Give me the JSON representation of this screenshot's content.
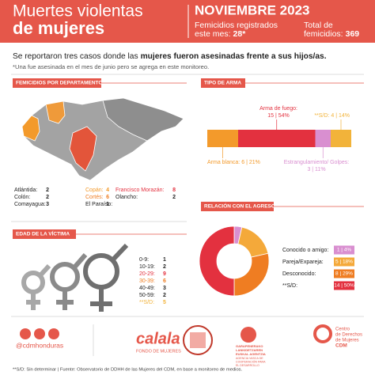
{
  "header": {
    "title_line1": "Muertes violentas",
    "title_line2": "de mujeres",
    "month": "NOVIEMBRE 2023",
    "monthly_label_line1": "Femicidios registrados",
    "monthly_label_line2": "este mes:",
    "monthly_value": "28*",
    "total_label_line1": "Total de",
    "total_label_line2": "femicidios:",
    "total_value": 369
  },
  "intro": {
    "text_start": "Se reportaron tres casos donde las",
    "text_bold": "mujeres fueron asesinadas frente a sus hijos/as.",
    "note": "*Una fue asesinada en el mes de junio pero se agrega en este monitoreo."
  },
  "chart_data": [
    {
      "type": "table",
      "title": "FEMICIDIOS POR DEPARTAMENTO",
      "categories": [
        "Atlántida:",
        "Colón:",
        "Comayagua:",
        "Copán:",
        "Cortés:",
        "El Paraíso:",
        "Francisco Morazán:",
        "Olancho:"
      ],
      "values": [
        2,
        2,
        3,
        4,
        6,
        1,
        8,
        2
      ],
      "colors": [
        "#222222",
        "#222222",
        "#222222",
        "#f39a2b",
        "#ef7d22",
        "#222222",
        "#e3313f",
        "#222222"
      ]
    },
    {
      "type": "stacked-bar",
      "title": "TIPO DE ARMA",
      "xlim": [
        0,
        28
      ],
      "series": [
        {
          "name": "Arma blanca:",
          "color": "#f39a2b",
          "values": [
            6
          ],
          "value_labels": [
            "6 | 21%"
          ]
        },
        {
          "name": "Arma de fuego:",
          "color": "#e3313f",
          "values": [
            15
          ],
          "value_labels": [
            "15 | 54%"
          ]
        },
        {
          "name": "Estrangulamiento/ Golpes:",
          "color": "#d98fd0",
          "values": [
            3
          ],
          "value_labels": [
            "3 | 11%"
          ]
        },
        {
          "name": "**S/D:",
          "color": "#f2b33a",
          "values": [
            4
          ],
          "value_labels": [
            "4 | 14%"
          ]
        }
      ]
    },
    {
      "type": "list",
      "title": "EDAD DE LA VÍCTIMA",
      "categories": [
        "0-9:",
        "10-19:",
        "20-29:",
        "30-39:",
        "40-49:",
        "50-59:",
        "**S/D:"
      ],
      "values": [
        1,
        2,
        9,
        6,
        3,
        2,
        5
      ],
      "colors": [
        "#222222",
        "#222222",
        "#e3313f",
        "#ef7d22",
        "#222222",
        "#222222",
        "#f2b33a"
      ]
    },
    {
      "type": "donut",
      "title": "RELACIÓN CON EL AGRESOR",
      "categories": [
        "Conocido o amigo:",
        "Pareja/Expareja:",
        "Desconocido:",
        "**S/D:"
      ],
      "values": [
        1,
        5,
        8,
        14
      ],
      "value_labels": [
        "1 | 4%",
        "5 | 18%",
        "8 | 29%",
        "14 | 50%"
      ],
      "colors": [
        "#d98fd0",
        "#f4a93a",
        "#ef7d22",
        "#e3313f"
      ]
    }
  ],
  "footer": {
    "handle": "@cdmhonduras",
    "calala": "calala",
    "calala_sub": "FONDO DE MUJERES",
    "basque_line1": "GARAPENERAKO",
    "basque_line2": "LANKIDETZAREN",
    "basque_line3": "EUSKAL AGENTZIA",
    "basque_line4": "AGENCIA VASCA DE",
    "basque_line5": "COOPERACIÓN PARA",
    "basque_line6": "EL DESARROLLO",
    "cdm_line1": "Centro",
    "cdm_line2": "de Derechos",
    "cdm_line3": "de Mujeres",
    "cdm_line4": "CDM",
    "source": "**S/D: Sin determinar | Fuente: Observatorio de DDHH de las Mujeres del CDM, en base a monitoreo de medios."
  }
}
